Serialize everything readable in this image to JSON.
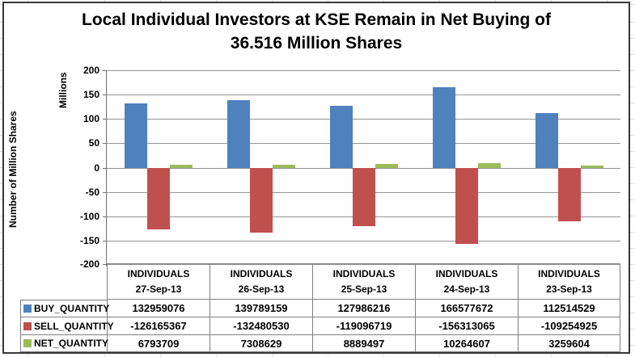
{
  "title": {
    "line1": "Local Individual Investors at KSE Remain in Net Buying of",
    "line2": "36.516 Million Shares"
  },
  "y_axis": {
    "unit_label": "Millions",
    "axis_title": "Number of Million Shares",
    "ticks": [
      200,
      150,
      100,
      50,
      0,
      -50,
      -100,
      -150,
      -200
    ]
  },
  "chart_data": {
    "type": "bar",
    "title": "Local Individual Investors at KSE Remain in Net Buying of 36.516 Million Shares",
    "ylabel": "Number of Million Shares",
    "axis_unit_label": "Millions",
    "ylim": [
      -200,
      200
    ],
    "grid": true,
    "legend_position": "left-of-data-table",
    "category_group_label": "INDIVIDUALS",
    "categories": [
      "27-Sep-13",
      "26-Sep-13",
      "25-Sep-13",
      "24-Sep-13",
      "23-Sep-13"
    ],
    "series": [
      {
        "name": "BUY_QUANTITY",
        "color": "#4F81BD",
        "values": [
          132959076,
          139789159,
          127986216,
          166577672,
          112514529
        ]
      },
      {
        "name": "SELL_QUANTITY",
        "color": "#C0504D",
        "values": [
          -126165367,
          -132480530,
          -119096719,
          -156313065,
          -109254925
        ]
      },
      {
        "name": "NET_QUANTITY",
        "color": "#9BBB59",
        "values": [
          6793709,
          7308629,
          8889497,
          10264607,
          3259604
        ]
      }
    ]
  }
}
